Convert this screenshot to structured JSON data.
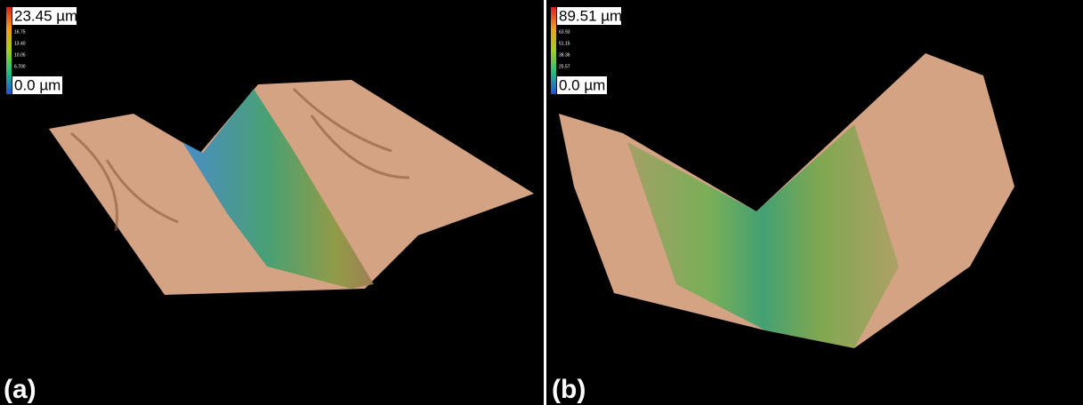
{
  "panels": [
    {
      "label": "(a)",
      "scale": {
        "max": "23.45 µm",
        "ticks": [
          "16.75",
          "13.40",
          "10.05",
          "6.700"
        ],
        "min": "0.0 µm"
      }
    },
    {
      "label": "(b)",
      "scale": {
        "max": "89.51 µm",
        "ticks": [
          "63.93",
          "51.15",
          "38.36",
          "25.57"
        ],
        "min": "0.0 µm"
      }
    }
  ]
}
